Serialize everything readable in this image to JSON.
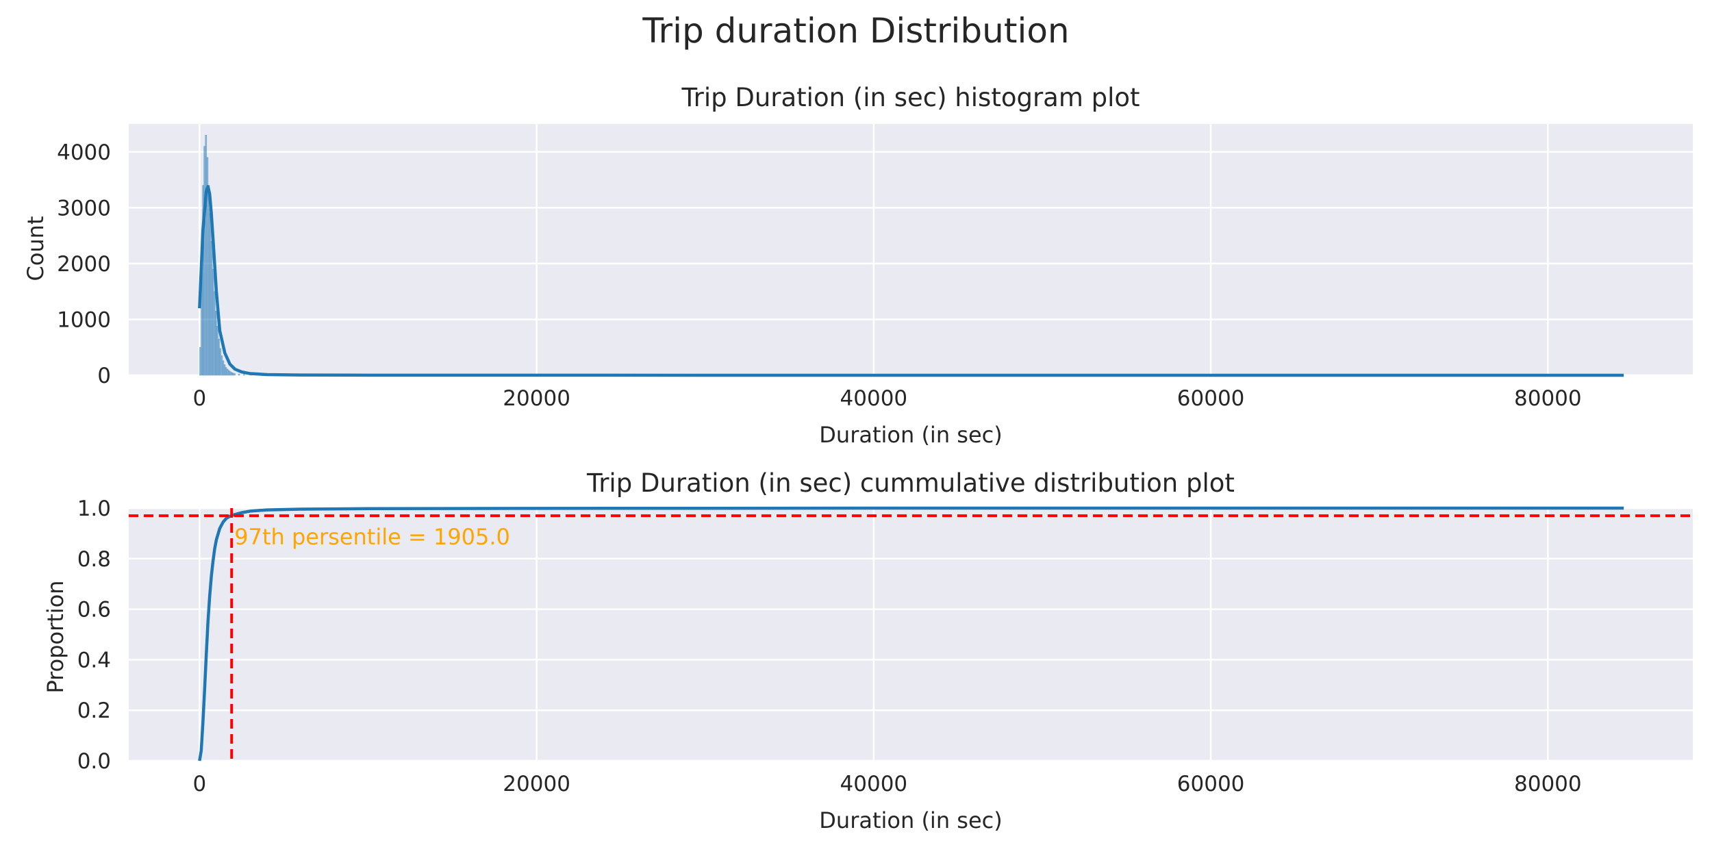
{
  "figure": {
    "suptitle": "Trip duration Distribution",
    "background": "#ffffff",
    "axes_background": "#eaeaf2",
    "grid_color": "#ffffff"
  },
  "chart_data": [
    {
      "type": "bar",
      "subtype": "histogram_with_kde",
      "title": "Trip Duration (in sec) histogram plot",
      "xlabel": "Duration (in sec)",
      "ylabel": "Count",
      "xlim": [
        -4200,
        88600
      ],
      "ylim": [
        0,
        4500
      ],
      "xticks": [
        0,
        20000,
        40000,
        60000,
        80000
      ],
      "xtick_labels": [
        "0",
        "20000",
        "40000",
        "60000",
        "80000"
      ],
      "yticks": [
        0,
        1000,
        2000,
        3000,
        4000
      ],
      "ytick_labels": [
        "0",
        "1000",
        "2000",
        "3000",
        "4000"
      ],
      "grid": true,
      "bar_color": "#1f77b4",
      "line_color": "#1f77b4",
      "bin_width": 85,
      "histogram": {
        "x": [
          0,
          85,
          170,
          255,
          340,
          425,
          510,
          595,
          680,
          765,
          850,
          935,
          1020,
          1105,
          1190,
          1275,
          1360,
          1445,
          1530,
          1615,
          1700,
          1785,
          1870,
          1955,
          2040,
          2300,
          2600,
          3000,
          3500,
          4000,
          5000
        ],
        "values": [
          500,
          2300,
          3400,
          4100,
          4300,
          3900,
          3400,
          2900,
          2400,
          1900,
          1500,
          1150,
          880,
          650,
          480,
          350,
          260,
          190,
          140,
          110,
          85,
          65,
          50,
          40,
          30,
          20,
          15,
          10,
          6,
          4,
          2
        ]
      },
      "kde": {
        "x": [
          0,
          200,
          400,
          500,
          600,
          700,
          800,
          1000,
          1200,
          1500,
          1800,
          2100,
          2500,
          3000,
          4000,
          6000,
          10000,
          20000,
          40000,
          60000,
          84500
        ],
        "values": [
          1200,
          2600,
          3300,
          3380,
          3250,
          2900,
          2450,
          1500,
          800,
          400,
          200,
          110,
          60,
          30,
          12,
          5,
          2,
          1,
          0.5,
          0.3,
          0.1
        ]
      }
    },
    {
      "type": "line",
      "subtype": "ecdf",
      "title": "Trip Duration (in sec) cummulative distribution plot",
      "xlabel": "Duration (in sec)",
      "ylabel": "Proportion",
      "xlim": [
        -4200,
        88600
      ],
      "ylim": [
        0,
        1.0
      ],
      "xticks": [
        0,
        20000,
        40000,
        60000,
        80000
      ],
      "xtick_labels": [
        "0",
        "20000",
        "40000",
        "60000",
        "80000"
      ],
      "yticks": [
        0,
        0.2,
        0.4,
        0.6,
        0.8,
        1.0
      ],
      "ytick_labels": [
        "0.0",
        "0.2",
        "0.4",
        "0.6",
        "0.8",
        "1.0"
      ],
      "grid": true,
      "line_color": "#1f77b4",
      "ecdf": {
        "x": [
          0,
          100,
          200,
          300,
          400,
          500,
          600,
          700,
          800,
          900,
          1000,
          1200,
          1400,
          1600,
          1800,
          2000,
          2500,
          3000,
          4000,
          6000,
          10000,
          20000,
          40000,
          60000,
          84500
        ],
        "values": [
          0,
          0.04,
          0.15,
          0.28,
          0.42,
          0.55,
          0.65,
          0.73,
          0.79,
          0.84,
          0.875,
          0.92,
          0.945,
          0.96,
          0.968,
          0.973,
          0.982,
          0.988,
          0.993,
          0.996,
          0.998,
          0.999,
          1.0,
          1.0,
          1.0
        ]
      },
      "reference_lines": {
        "color": "#ff0000",
        "vertical_x": 1905.0,
        "horizontal_y": 0.97
      },
      "annotation": {
        "text": "97th persentile = 1905.0",
        "x": 1905.0,
        "y": 0.97,
        "color": "#ffa500"
      }
    }
  ]
}
